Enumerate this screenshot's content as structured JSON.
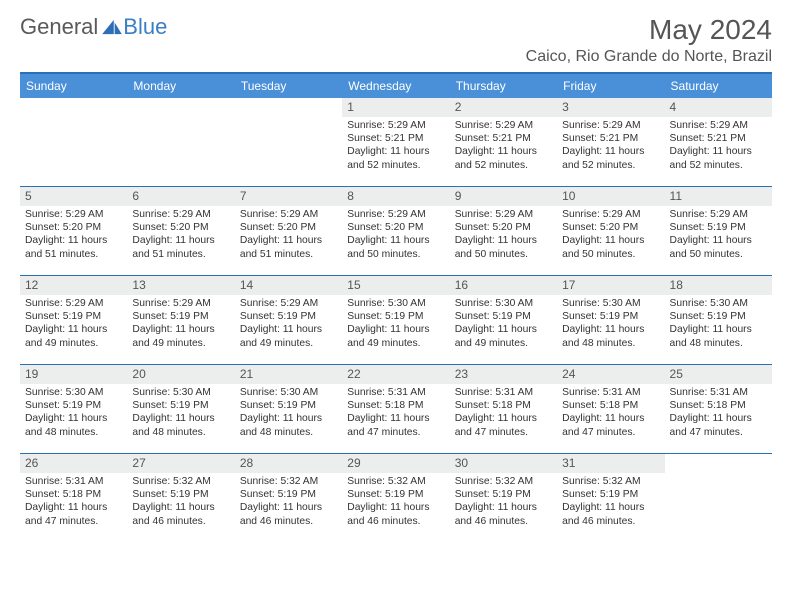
{
  "brand": {
    "part1": "General",
    "part2": "Blue"
  },
  "title": "May 2024",
  "location": "Caico, Rio Grande do Norte, Brazil",
  "colors": {
    "header_bar": "#4a90d9",
    "rule": "#2d6fb5",
    "daynum_bg": "#eceeee",
    "brand_blue": "#3a7fc4"
  },
  "day_names": [
    "Sunday",
    "Monday",
    "Tuesday",
    "Wednesday",
    "Thursday",
    "Friday",
    "Saturday"
  ],
  "weeks": [
    [
      {
        "empty": true
      },
      {
        "empty": true
      },
      {
        "empty": true
      },
      {
        "d": "1",
        "sr": "Sunrise: 5:29 AM",
        "ss": "Sunset: 5:21 PM",
        "dl": "Daylight: 11 hours and 52 minutes."
      },
      {
        "d": "2",
        "sr": "Sunrise: 5:29 AM",
        "ss": "Sunset: 5:21 PM",
        "dl": "Daylight: 11 hours and 52 minutes."
      },
      {
        "d": "3",
        "sr": "Sunrise: 5:29 AM",
        "ss": "Sunset: 5:21 PM",
        "dl": "Daylight: 11 hours and 52 minutes."
      },
      {
        "d": "4",
        "sr": "Sunrise: 5:29 AM",
        "ss": "Sunset: 5:21 PM",
        "dl": "Daylight: 11 hours and 52 minutes."
      }
    ],
    [
      {
        "d": "5",
        "sr": "Sunrise: 5:29 AM",
        "ss": "Sunset: 5:20 PM",
        "dl": "Daylight: 11 hours and 51 minutes."
      },
      {
        "d": "6",
        "sr": "Sunrise: 5:29 AM",
        "ss": "Sunset: 5:20 PM",
        "dl": "Daylight: 11 hours and 51 minutes."
      },
      {
        "d": "7",
        "sr": "Sunrise: 5:29 AM",
        "ss": "Sunset: 5:20 PM",
        "dl": "Daylight: 11 hours and 51 minutes."
      },
      {
        "d": "8",
        "sr": "Sunrise: 5:29 AM",
        "ss": "Sunset: 5:20 PM",
        "dl": "Daylight: 11 hours and 50 minutes."
      },
      {
        "d": "9",
        "sr": "Sunrise: 5:29 AM",
        "ss": "Sunset: 5:20 PM",
        "dl": "Daylight: 11 hours and 50 minutes."
      },
      {
        "d": "10",
        "sr": "Sunrise: 5:29 AM",
        "ss": "Sunset: 5:20 PM",
        "dl": "Daylight: 11 hours and 50 minutes."
      },
      {
        "d": "11",
        "sr": "Sunrise: 5:29 AM",
        "ss": "Sunset: 5:19 PM",
        "dl": "Daylight: 11 hours and 50 minutes."
      }
    ],
    [
      {
        "d": "12",
        "sr": "Sunrise: 5:29 AM",
        "ss": "Sunset: 5:19 PM",
        "dl": "Daylight: 11 hours and 49 minutes."
      },
      {
        "d": "13",
        "sr": "Sunrise: 5:29 AM",
        "ss": "Sunset: 5:19 PM",
        "dl": "Daylight: 11 hours and 49 minutes."
      },
      {
        "d": "14",
        "sr": "Sunrise: 5:29 AM",
        "ss": "Sunset: 5:19 PM",
        "dl": "Daylight: 11 hours and 49 minutes."
      },
      {
        "d": "15",
        "sr": "Sunrise: 5:30 AM",
        "ss": "Sunset: 5:19 PM",
        "dl": "Daylight: 11 hours and 49 minutes."
      },
      {
        "d": "16",
        "sr": "Sunrise: 5:30 AM",
        "ss": "Sunset: 5:19 PM",
        "dl": "Daylight: 11 hours and 49 minutes."
      },
      {
        "d": "17",
        "sr": "Sunrise: 5:30 AM",
        "ss": "Sunset: 5:19 PM",
        "dl": "Daylight: 11 hours and 48 minutes."
      },
      {
        "d": "18",
        "sr": "Sunrise: 5:30 AM",
        "ss": "Sunset: 5:19 PM",
        "dl": "Daylight: 11 hours and 48 minutes."
      }
    ],
    [
      {
        "d": "19",
        "sr": "Sunrise: 5:30 AM",
        "ss": "Sunset: 5:19 PM",
        "dl": "Daylight: 11 hours and 48 minutes."
      },
      {
        "d": "20",
        "sr": "Sunrise: 5:30 AM",
        "ss": "Sunset: 5:19 PM",
        "dl": "Daylight: 11 hours and 48 minutes."
      },
      {
        "d": "21",
        "sr": "Sunrise: 5:30 AM",
        "ss": "Sunset: 5:19 PM",
        "dl": "Daylight: 11 hours and 48 minutes."
      },
      {
        "d": "22",
        "sr": "Sunrise: 5:31 AM",
        "ss": "Sunset: 5:18 PM",
        "dl": "Daylight: 11 hours and 47 minutes."
      },
      {
        "d": "23",
        "sr": "Sunrise: 5:31 AM",
        "ss": "Sunset: 5:18 PM",
        "dl": "Daylight: 11 hours and 47 minutes."
      },
      {
        "d": "24",
        "sr": "Sunrise: 5:31 AM",
        "ss": "Sunset: 5:18 PM",
        "dl": "Daylight: 11 hours and 47 minutes."
      },
      {
        "d": "25",
        "sr": "Sunrise: 5:31 AM",
        "ss": "Sunset: 5:18 PM",
        "dl": "Daylight: 11 hours and 47 minutes."
      }
    ],
    [
      {
        "d": "26",
        "sr": "Sunrise: 5:31 AM",
        "ss": "Sunset: 5:18 PM",
        "dl": "Daylight: 11 hours and 47 minutes."
      },
      {
        "d": "27",
        "sr": "Sunrise: 5:32 AM",
        "ss": "Sunset: 5:19 PM",
        "dl": "Daylight: 11 hours and 46 minutes."
      },
      {
        "d": "28",
        "sr": "Sunrise: 5:32 AM",
        "ss": "Sunset: 5:19 PM",
        "dl": "Daylight: 11 hours and 46 minutes."
      },
      {
        "d": "29",
        "sr": "Sunrise: 5:32 AM",
        "ss": "Sunset: 5:19 PM",
        "dl": "Daylight: 11 hours and 46 minutes."
      },
      {
        "d": "30",
        "sr": "Sunrise: 5:32 AM",
        "ss": "Sunset: 5:19 PM",
        "dl": "Daylight: 11 hours and 46 minutes."
      },
      {
        "d": "31",
        "sr": "Sunrise: 5:32 AM",
        "ss": "Sunset: 5:19 PM",
        "dl": "Daylight: 11 hours and 46 minutes."
      },
      {
        "empty": true
      }
    ]
  ]
}
